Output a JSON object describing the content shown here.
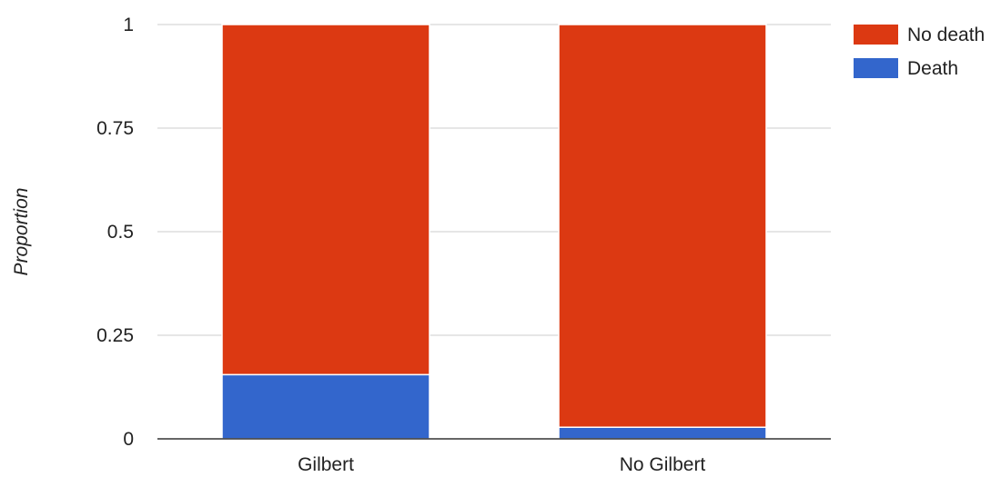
{
  "chart_data": {
    "type": "bar",
    "stacked": true,
    "categories": [
      "Gilbert",
      "No Gilbert"
    ],
    "series": [
      {
        "name": "Death",
        "color": "#3366cc",
        "values": [
          0.155,
          0.028
        ]
      },
      {
        "name": "No death",
        "color": "#dc3912",
        "values": [
          0.845,
          0.972
        ]
      }
    ],
    "title": "",
    "xlabel": "",
    "ylabel": "Proportion",
    "ylim": [
      0,
      1
    ],
    "yticks": [
      {
        "value": 0,
        "label": "0"
      },
      {
        "value": 0.25,
        "label": "0.25"
      },
      {
        "value": 0.5,
        "label": "0.5"
      },
      {
        "value": 0.75,
        "label": "0.75"
      },
      {
        "value": 1,
        "label": "1"
      }
    ],
    "grid": true,
    "legend": {
      "position": "top-right",
      "entries": [
        {
          "label": "No death",
          "color": "#dc3912"
        },
        {
          "label": "Death",
          "color": "#3366cc"
        }
      ]
    }
  }
}
